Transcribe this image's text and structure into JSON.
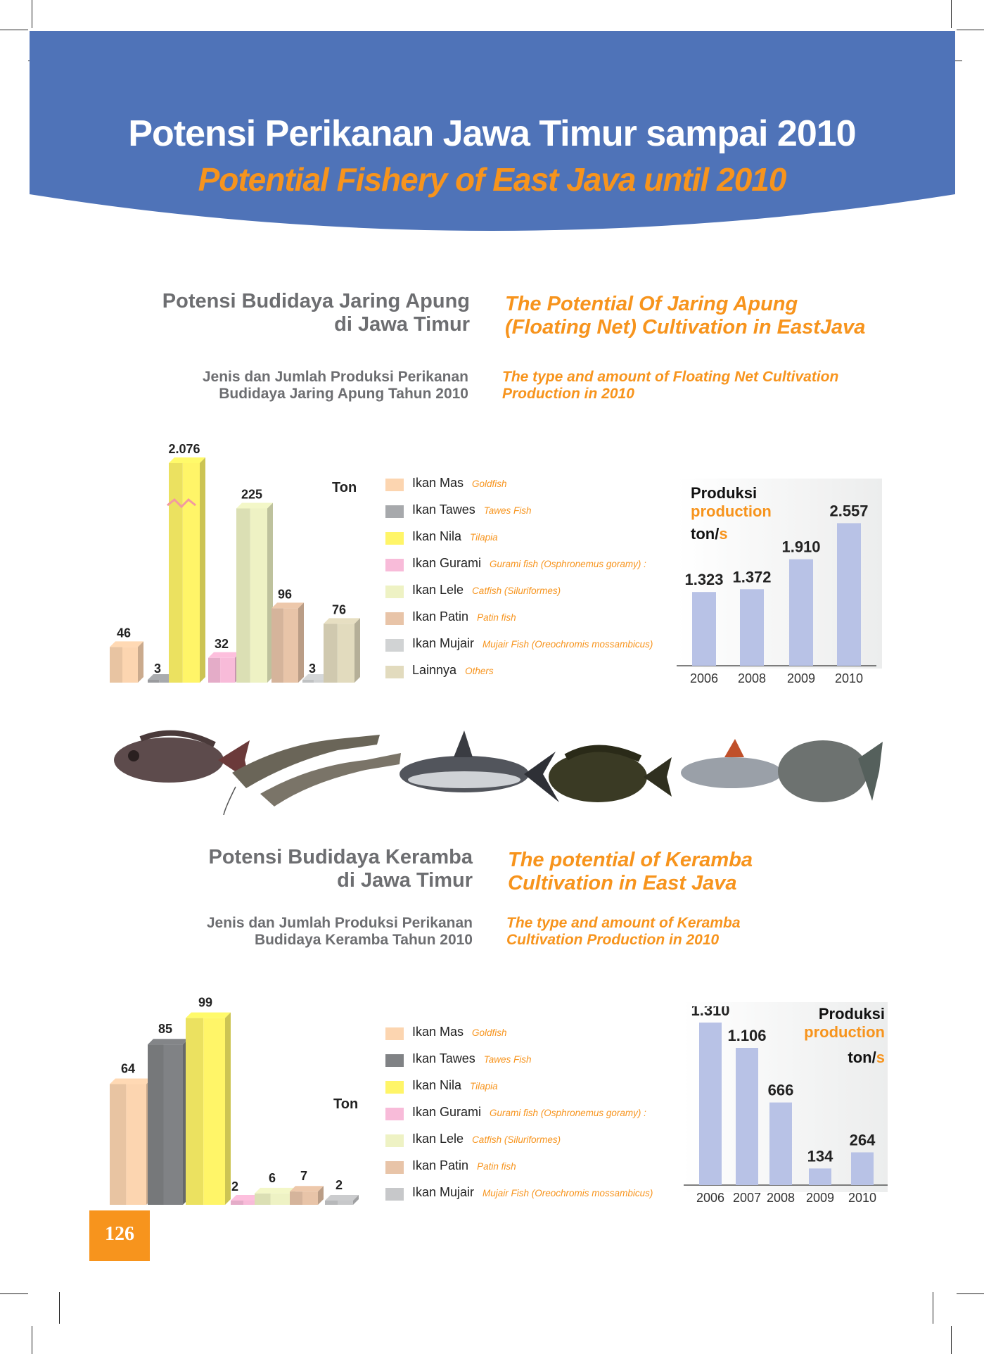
{
  "banner": {
    "title_id": "Potensi Perikanan Jawa Timur sampai 2010",
    "title_en": "Potential Fishery of East Java until 2010",
    "color": "#4f73b8"
  },
  "section1": {
    "heading_id_line1": "Potensi Budidaya Jaring Apung",
    "heading_id_line2": "di Jawa Timur",
    "heading_en_line1": "The Potential Of Jaring Apung",
    "heading_en_line2": "(Floating Net) Cultivation in EastJava",
    "sub_id_line1": "Jenis dan Jumlah Produksi Perikanan",
    "sub_id_line2": "Budidaya Jaring Apung Tahun 2010",
    "sub_en_line1": "The type and amount of Floating Net Cultivation",
    "sub_en_line2": "Production in 2010",
    "unit": "Ton",
    "legend": [
      {
        "id": "Ikan Mas",
        "en": "Goldfish",
        "color": "#fcd5b0"
      },
      {
        "id": "Ikan Tawes",
        "en": "Tawes Fish",
        "color": "#a7a9ac"
      },
      {
        "id": "Ikan Nila",
        "en": "Tilapia",
        "color": "#fff568"
      },
      {
        "id": "Ikan Gurami",
        "en": "Gurami fish (Osphronemus goramy) :",
        "color": "#f8bbd9"
      },
      {
        "id": "Ikan Lele",
        "en": "Catfish (Siluriformes)",
        "color": "#eef2c4"
      },
      {
        "id": "Ikan Patin",
        "en": "Patin fish",
        "color": "#e8c4a8"
      },
      {
        "id": "Ikan Mujair",
        "en": "Mujair Fish (Oreochromis mossambicus)",
        "color": "#d1d3d4"
      },
      {
        "id": "Lainnya",
        "en": "Others",
        "color": "#e2dbbe"
      }
    ],
    "production": {
      "label_id": "Produksi",
      "label_en": "production",
      "unit_a": "ton/",
      "unit_b": "s"
    }
  },
  "section2": {
    "heading_id_line1": "Potensi Budidaya Keramba",
    "heading_id_line2": "di Jawa Timur",
    "heading_en_line1": "The potential of Keramba",
    "heading_en_line2": "Cultivation in East Java",
    "sub_id_line1": "Jenis dan Jumlah Produksi Perikanan",
    "sub_id_line2": "Budidaya Keramba Tahun 2010",
    "sub_en_line1": "The type and amount of Keramba",
    "sub_en_line2": "Cultivation Production in 2010",
    "unit": "Ton",
    "legend": [
      {
        "id": "Ikan Mas",
        "en": "Goldfish",
        "color": "#fcd5b0"
      },
      {
        "id": "Ikan Tawes",
        "en": "Tawes Fish",
        "color": "#808285"
      },
      {
        "id": "Ikan Nila",
        "en": "Tilapia",
        "color": "#fff568"
      },
      {
        "id": "Ikan Gurami",
        "en": "Gurami fish (Osphronemus goramy) :",
        "color": "#f8bbd9"
      },
      {
        "id": "Ikan Lele",
        "en": "Catfish (Siluriformes)",
        "color": "#eef2c4"
      },
      {
        "id": "Ikan Patin",
        "en": "Patin fish",
        "color": "#e8c4a8"
      },
      {
        "id": "Ikan Mujair",
        "en": "Mujair Fish (Oreochromis mossambicus)",
        "color": "#c7c8ca"
      }
    ],
    "production": {
      "label_id": "Produksi",
      "label_en": "production",
      "unit_a": "ton/",
      "unit_b": "s"
    }
  },
  "page_number": "126",
  "chart_data": [
    {
      "type": "bar",
      "categories": [
        "Ikan Mas",
        "Ikan Tawes",
        "Ikan Nila",
        "Ikan Gurami",
        "Ikan Lele",
        "Ikan Patin",
        "Ikan Mujair",
        "Lainnya"
      ],
      "values": [
        46,
        3,
        2076,
        32,
        225,
        96,
        3,
        76
      ],
      "value_labels": [
        "46",
        "3",
        "2.076",
        "32",
        "225",
        "96",
        "3",
        "76"
      ],
      "colors": [
        "#fcd5b0",
        "#a7a9ac",
        "#fff568",
        "#f8bbd9",
        "#eef2c4",
        "#e8c4a8",
        "#d1d3d4",
        "#e2dbbe"
      ],
      "axis_break": true,
      "ylabel": "Ton"
    },
    {
      "type": "bar",
      "categories": [
        "2006",
        "2008",
        "2009",
        "2010"
      ],
      "values": [
        1323,
        1372,
        1910,
        2557
      ],
      "value_labels": [
        "1.323",
        "1.372",
        "1.910",
        "2.557"
      ],
      "ylim": [
        0,
        2600
      ],
      "color": "#b8c2e6"
    },
    {
      "type": "bar",
      "categories": [
        "Ikan Mas",
        "Ikan Tawes",
        "Ikan Nila",
        "Ikan Gurami",
        "Ikan Lele",
        "Ikan Patin",
        "Ikan Mujair"
      ],
      "values": [
        64,
        85,
        99,
        2,
        6,
        7,
        2
      ],
      "value_labels": [
        "64",
        "85",
        "99",
        "2",
        "6",
        "7",
        "2"
      ],
      "colors": [
        "#fcd5b0",
        "#808285",
        "#fff568",
        "#f8bbd9",
        "#eef2c4",
        "#e8c4a8",
        "#c7c8ca"
      ],
      "ylabel": "Ton"
    },
    {
      "type": "bar",
      "categories": [
        "2006",
        "2007",
        "2008",
        "2009",
        "2010"
      ],
      "values": [
        1310,
        1106,
        666,
        134,
        264
      ],
      "value_labels": [
        "1.310",
        "1.106",
        "666",
        "134",
        "264"
      ],
      "ylim": [
        0,
        1350
      ],
      "color": "#b8c2e6"
    }
  ]
}
